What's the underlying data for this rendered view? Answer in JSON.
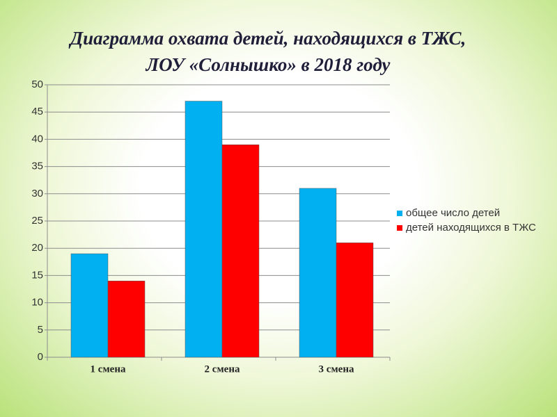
{
  "chart_data": {
    "type": "bar",
    "title": [
      "Диаграмма охвата детей, находящихся в ТЖС,",
      "ЛОУ  «Солнышко» в 2018 году"
    ],
    "categories": [
      "1 смена",
      "2  смена",
      "3 смена"
    ],
    "series": [
      {
        "name": "общее число детей",
        "color": "#00b0f0",
        "values": [
          19,
          47,
          31
        ]
      },
      {
        "name": "детей находящихся в ТЖС",
        "color": "#ff0000",
        "values": [
          14,
          39,
          21
        ]
      }
    ],
    "ylim": [
      0,
      50
    ],
    "yticks": [
      0,
      5,
      10,
      15,
      20,
      25,
      30,
      35,
      40,
      45,
      50
    ],
    "grid": true,
    "legend": "right"
  }
}
